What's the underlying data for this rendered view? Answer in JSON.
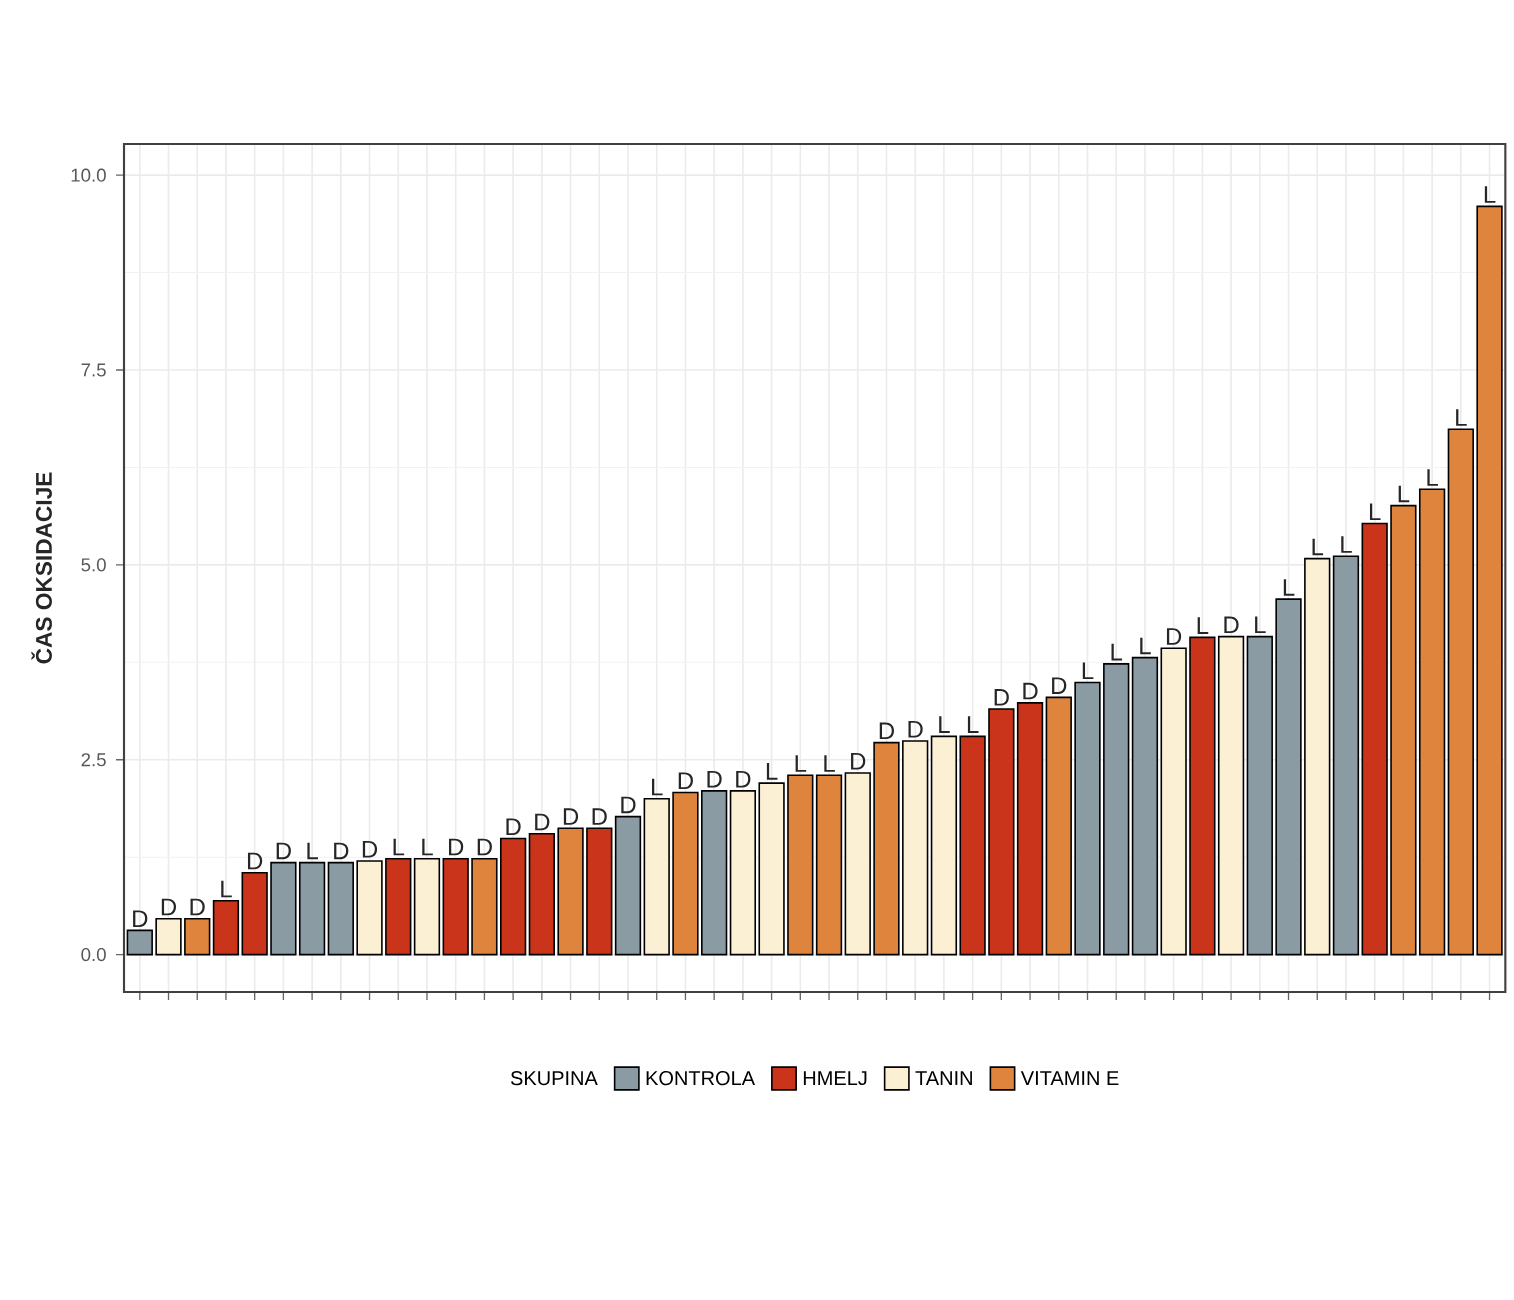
{
  "chart_data": {
    "type": "bar",
    "ylabel": "ČAS OKSIDACIJE",
    "legend_title": "SKUPINA",
    "categories": [
      null,
      null,
      null,
      null,
      null,
      null,
      null,
      null,
      null,
      null,
      null,
      null,
      null,
      null,
      null,
      null,
      null,
      null,
      null,
      null,
      null,
      null,
      null,
      null,
      null,
      null,
      null,
      null,
      null,
      null,
      null,
      null,
      null,
      null,
      null,
      null,
      null,
      null,
      null,
      null,
      null,
      null,
      null,
      null,
      null,
      null,
      null,
      null
    ],
    "series": [
      {
        "name": "KONTROLA",
        "color": "#8a9ba3",
        "values": [
          0.31,
          null,
          null,
          null,
          null,
          1.18,
          1.18,
          1.18,
          null,
          null,
          null,
          null,
          null,
          null,
          null,
          null,
          null,
          1.77,
          null,
          null,
          2.1,
          null,
          null,
          null,
          null,
          null,
          null,
          null,
          null,
          null,
          null,
          null,
          null,
          3.49,
          3.73,
          3.81,
          null,
          null,
          null,
          4.08,
          4.56,
          null,
          5.11,
          null,
          null,
          null,
          null,
          null
        ],
        "value_labels": [
          "D",
          null,
          null,
          null,
          null,
          "D",
          "L",
          "D",
          null,
          null,
          null,
          null,
          null,
          null,
          null,
          null,
          null,
          "D",
          null,
          null,
          "D",
          null,
          null,
          null,
          null,
          null,
          null,
          null,
          null,
          null,
          null,
          null,
          null,
          "L",
          "L",
          "L",
          null,
          null,
          null,
          "L",
          "L",
          null,
          "L",
          null,
          null,
          null,
          null,
          null
        ]
      },
      {
        "name": "HMELJ",
        "color": "#c9341a",
        "values": [
          null,
          null,
          null,
          0.69,
          1.05,
          null,
          null,
          null,
          null,
          1.23,
          null,
          1.23,
          null,
          1.49,
          1.55,
          null,
          1.62,
          null,
          null,
          null,
          null,
          null,
          null,
          null,
          null,
          null,
          null,
          null,
          null,
          2.8,
          3.15,
          3.23,
          null,
          null,
          null,
          null,
          null,
          4.07,
          null,
          null,
          null,
          null,
          null,
          5.53,
          null,
          null,
          null,
          null
        ],
        "value_labels": [
          null,
          null,
          null,
          "L",
          "D",
          null,
          null,
          null,
          null,
          "L",
          null,
          "D",
          null,
          "D",
          "D",
          null,
          "D",
          null,
          null,
          null,
          null,
          null,
          null,
          null,
          null,
          null,
          null,
          null,
          null,
          "L",
          "D",
          "D",
          null,
          null,
          null,
          null,
          null,
          "L",
          null,
          null,
          null,
          null,
          null,
          "L",
          null,
          null,
          null,
          null
        ]
      },
      {
        "name": "TANIN",
        "color": "#fbf0d3",
        "values": [
          null,
          0.46,
          null,
          null,
          null,
          null,
          null,
          null,
          1.2,
          null,
          1.23,
          null,
          null,
          null,
          null,
          null,
          null,
          null,
          2.0,
          null,
          null,
          2.1,
          2.2,
          null,
          null,
          2.33,
          null,
          2.74,
          2.8,
          null,
          null,
          null,
          null,
          null,
          null,
          null,
          3.93,
          null,
          4.08,
          null,
          null,
          5.08,
          null,
          null,
          null,
          null,
          null,
          null
        ],
        "value_labels": [
          null,
          "D",
          null,
          null,
          null,
          null,
          null,
          null,
          "D",
          null,
          "L",
          null,
          null,
          null,
          null,
          null,
          null,
          null,
          "L",
          null,
          null,
          "D",
          "L",
          null,
          null,
          "D",
          null,
          "D",
          "L",
          null,
          null,
          null,
          null,
          null,
          null,
          null,
          "D",
          null,
          "D",
          null,
          null,
          "L",
          null,
          null,
          null,
          null,
          null,
          null
        ]
      },
      {
        "name": "VITAMIN E",
        "color": "#de843c",
        "values": [
          null,
          null,
          0.46,
          null,
          null,
          null,
          null,
          null,
          null,
          null,
          null,
          null,
          1.23,
          null,
          null,
          1.62,
          null,
          null,
          null,
          2.08,
          null,
          null,
          null,
          2.3,
          2.3,
          null,
          2.72,
          null,
          null,
          null,
          null,
          null,
          3.3,
          null,
          null,
          null,
          null,
          null,
          null,
          null,
          null,
          null,
          null,
          null,
          5.76,
          5.97,
          6.74,
          9.6
        ],
        "value_labels": [
          null,
          null,
          "D",
          null,
          null,
          null,
          null,
          null,
          null,
          null,
          null,
          null,
          "D",
          null,
          null,
          "D",
          null,
          null,
          null,
          "D",
          null,
          null,
          null,
          "L",
          "L",
          null,
          "D",
          null,
          null,
          null,
          null,
          null,
          "D",
          null,
          null,
          null,
          null,
          null,
          null,
          null,
          null,
          null,
          null,
          null,
          "L",
          "L",
          "L",
          "L"
        ]
      }
    ],
    "ylim": [
      -0.48,
      10.4
    ],
    "yticks": [
      {
        "value": 0,
        "label": "0.0"
      },
      {
        "value": 2.5,
        "label": "2.5"
      },
      {
        "value": 5,
        "label": "5.0"
      },
      {
        "value": 7.5,
        "label": "7.5"
      },
      {
        "value": 10,
        "label": "10.0"
      }
    ],
    "grid": true,
    "legend": "bottom"
  }
}
